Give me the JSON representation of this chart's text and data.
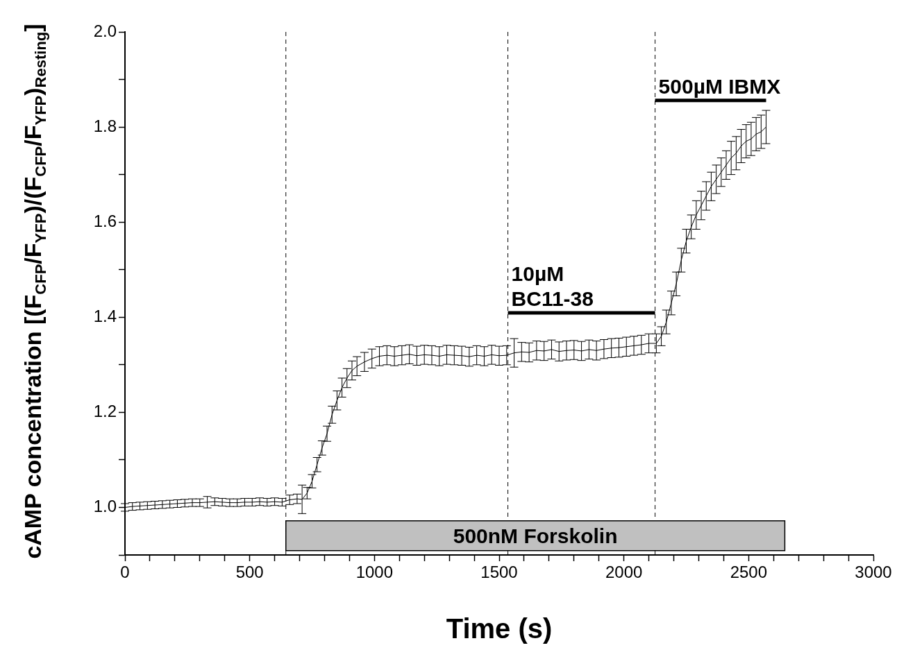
{
  "chart_data": {
    "type": "line",
    "xlabel": "Time (s)",
    "ylabel": "cAMP concentration [(F$_{CFP}$/F$_{YFP}$)/(F$_{CFP}$/F$_{YFP}$)$_{Resting}$]",
    "x": [
      0,
      30,
      60,
      90,
      120,
      150,
      180,
      210,
      240,
      270,
      300,
      330,
      360,
      390,
      420,
      450,
      480,
      510,
      540,
      570,
      600,
      630,
      660,
      690,
      710,
      730,
      750,
      770,
      790,
      810,
      830,
      850,
      870,
      890,
      910,
      930,
      960,
      990,
      1020,
      1050,
      1080,
      1110,
      1140,
      1170,
      1200,
      1230,
      1260,
      1290,
      1320,
      1350,
      1380,
      1410,
      1440,
      1470,
      1500,
      1530,
      1560,
      1590,
      1620,
      1650,
      1680,
      1710,
      1740,
      1770,
      1800,
      1830,
      1860,
      1890,
      1920,
      1950,
      1980,
      2010,
      2040,
      2070,
      2100,
      2130,
      2150,
      2170,
      2190,
      2210,
      2230,
      2250,
      2270,
      2290,
      2310,
      2330,
      2350,
      2370,
      2390,
      2410,
      2430,
      2450,
      2470,
      2490,
      2510,
      2530,
      2550,
      2570
    ],
    "series": [
      {
        "color": "#000000",
        "values": [
          1.0,
          1.002,
          1.003,
          1.004,
          1.005,
          1.006,
          1.007,
          1.008,
          1.009,
          1.01,
          1.01,
          1.011,
          1.012,
          1.011,
          1.01,
          1.01,
          1.011,
          1.011,
          1.012,
          1.011,
          1.012,
          1.011,
          1.016,
          1.018,
          1.017,
          1.03,
          1.055,
          1.09,
          1.125,
          1.155,
          1.195,
          1.225,
          1.252,
          1.272,
          1.288,
          1.297,
          1.306,
          1.313,
          1.318,
          1.32,
          1.318,
          1.32,
          1.322,
          1.319,
          1.321,
          1.32,
          1.318,
          1.321,
          1.32,
          1.319,
          1.317,
          1.32,
          1.318,
          1.321,
          1.319,
          1.32,
          1.325,
          1.327,
          1.326,
          1.33,
          1.329,
          1.332,
          1.328,
          1.33,
          1.331,
          1.329,
          1.332,
          1.33,
          1.333,
          1.335,
          1.336,
          1.338,
          1.34,
          1.342,
          1.345,
          1.345,
          1.36,
          1.39,
          1.43,
          1.47,
          1.52,
          1.56,
          1.59,
          1.615,
          1.635,
          1.655,
          1.675,
          1.69,
          1.705,
          1.72,
          1.735,
          1.745,
          1.76,
          1.77,
          1.775,
          1.785,
          1.79,
          1.8
        ],
        "errors": [
          0.008,
          0.008,
          0.008,
          0.008,
          0.008,
          0.008,
          0.008,
          0.008,
          0.008,
          0.008,
          0.008,
          0.012,
          0.008,
          0.008,
          0.008,
          0.008,
          0.008,
          0.008,
          0.008,
          0.008,
          0.008,
          0.008,
          0.01,
          0.01,
          0.03,
          0.012,
          0.014,
          0.015,
          0.015,
          0.016,
          0.018,
          0.02,
          0.02,
          0.02,
          0.02,
          0.02,
          0.02,
          0.02,
          0.02,
          0.02,
          0.02,
          0.02,
          0.02,
          0.02,
          0.02,
          0.02,
          0.02,
          0.02,
          0.02,
          0.02,
          0.02,
          0.02,
          0.02,
          0.02,
          0.02,
          0.02,
          0.03,
          0.02,
          0.02,
          0.02,
          0.02,
          0.02,
          0.02,
          0.02,
          0.02,
          0.02,
          0.02,
          0.02,
          0.02,
          0.02,
          0.02,
          0.02,
          0.02,
          0.02,
          0.02,
          0.02,
          0.02,
          0.025,
          0.025,
          0.025,
          0.025,
          0.025,
          0.025,
          0.03,
          0.03,
          0.03,
          0.03,
          0.03,
          0.03,
          0.03,
          0.035,
          0.035,
          0.035,
          0.035,
          0.035,
          0.035,
          0.035,
          0.035
        ]
      }
    ],
    "xlim": [
      0,
      3000
    ],
    "ylim": [
      0.9,
      2.0
    ],
    "xticks": [
      0,
      {
        "value": 100,
        "label": null
      },
      {
        "value": 200,
        "label": null
      },
      {
        "value": 300,
        "label": null
      },
      {
        "value": 400,
        "label": null
      },
      500,
      {
        "value": 600,
        "label": null
      },
      {
        "value": 700,
        "label": null
      },
      {
        "value": 800,
        "label": null
      },
      {
        "value": 900,
        "label": null
      },
      1000,
      {
        "value": 1100,
        "label": null
      },
      {
        "value": 1200,
        "label": null
      },
      {
        "value": 1300,
        "label": null
      },
      {
        "value": 1400,
        "label": null
      },
      1500,
      {
        "value": 1600,
        "label": null
      },
      {
        "value": 1700,
        "label": null
      },
      {
        "value": 1800,
        "label": null
      },
      {
        "value": 1900,
        "label": null
      },
      2000,
      {
        "value": 2100,
        "label": null
      },
      {
        "value": 2200,
        "label": null
      },
      {
        "value": 2300,
        "label": null
      },
      {
        "value": 2400,
        "label": null
      },
      2500,
      {
        "value": 2600,
        "label": null
      },
      {
        "value": 2700,
        "label": null
      },
      {
        "value": 2800,
        "label": null
      },
      {
        "value": 2900,
        "label": null
      },
      3000
    ],
    "yticks": [
      {
        "value": 0.9,
        "label": null
      },
      {
        "value": 1.0,
        "label": "1.0"
      },
      {
        "value": 1.1,
        "label": null
      },
      {
        "value": 1.2,
        "label": "1.2"
      },
      {
        "value": 1.3,
        "label": null
      },
      {
        "value": 1.4,
        "label": "1.4"
      },
      {
        "value": 1.5,
        "label": null
      },
      {
        "value": 1.6,
        "label": "1.6"
      },
      {
        "value": 1.7,
        "label": null
      },
      {
        "value": 1.8,
        "label": "1.8"
      },
      {
        "value": 1.9,
        "label": null
      },
      {
        "value": 2.0,
        "label": "2.0"
      }
    ],
    "ref_lines": [
      {
        "axis": "x",
        "value": 645,
        "line_style": "dashed"
      },
      {
        "axis": "x",
        "value": 1535,
        "line_style": "dashed"
      },
      {
        "axis": "x",
        "value": 2125,
        "line_style": "dashed"
      }
    ],
    "bands": [
      {
        "axis": "x",
        "from": 645,
        "to": 2645,
        "label": "500nM Forskolin",
        "color": "#c0c0c0"
      }
    ],
    "annotations": [
      {
        "text": "10µM\nBC11-38",
        "x": 1535,
        "y": 1.409
      },
      {
        "text": "500µM IBMX",
        "x": 2125,
        "y": 1.856
      }
    ],
    "grid": false,
    "legend": false,
    "marker": "none",
    "line_style": "solid"
  }
}
